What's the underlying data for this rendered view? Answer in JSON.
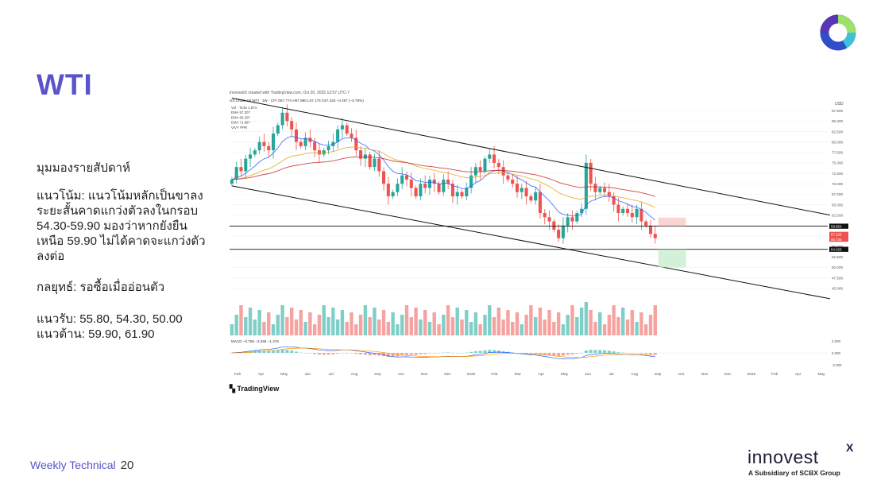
{
  "slide": {
    "title": "WTI",
    "page_label": "Weekly Technical",
    "page_number": "20",
    "brand_name": "innovest",
    "brand_x": "X",
    "brand_sub": "A Subsidiary of SCBX Group"
  },
  "content": {
    "view_heading": "มุมมองรายสัปดาห์",
    "trend_lines": [
      "แนวโน้ม: แนวโน้มหลักเป็นขาลง",
      "ระยะสั้นคาดแกว่งตัวลงในกรอบ",
      "54.30-59.90 มองว่าหากยังยืน",
      "เหนือ 59.90 ไม่ได้คาดจะแกว่งตัว",
      "ลงต่อ"
    ],
    "strategy": "กลยุทธ์: รอซื้อเมื่ออ่อนตัว",
    "support": "แนวรับ: 55.80, 54.30, 50.00",
    "resistance": "แนวต้าน: 59.90, 61.90"
  },
  "chart_data": {
    "type": "candlestick",
    "header": "innovestX created with TradingView.com, Oct 20, 2025 12:57 UTC-7",
    "symbol_line": "US Crude Oil WTI · 1W · CFI  O57.774 H57.980 L57.175 C57.225 −0.457 (−0.79%)",
    "indicator_labels": [
      "Vol · Ticks 1.874",
      "EMA 57.307",
      "EMA 60.207",
      "EMA 71.897",
      "VIVY PPR"
    ],
    "macd_label": "MACD −0.759 −2.266 −1.476",
    "currency": "USD",
    "x_labels": [
      "Feb",
      "Apr",
      "May",
      "Jun",
      "Jul",
      "Aug",
      "Sep",
      "Oct",
      "Nov",
      "Dec",
      "2025",
      "Feb",
      "Mar",
      "Apr",
      "May",
      "Jun",
      "Jul",
      "Aug",
      "Sep",
      "Oct",
      "Nov",
      "Dec",
      "2026",
      "Feb",
      "Apr",
      "May"
    ],
    "y_ticks": [
      "87.500",
      "85.000",
      "82.500",
      "80.000",
      "77.500",
      "75.000",
      "72.500",
      "70.000",
      "67.500",
      "65.000",
      "62.500",
      "60.000",
      "57.500",
      "55.000",
      "52.500",
      "50.000",
      "47.500",
      "45.000"
    ],
    "price_tags": [
      "59.853",
      "57.225",
      "56.735",
      "54.325"
    ],
    "macd_ticks": [
      "2.000",
      "0.000",
      "-2.000"
    ],
    "ylim": [
      44,
      90
    ],
    "closes": [
      71,
      74,
      73,
      76,
      77,
      78,
      80,
      79,
      78,
      82,
      84,
      87,
      85,
      83,
      80,
      79,
      81,
      80,
      78,
      77,
      78,
      79,
      80,
      83,
      84,
      82,
      81,
      78,
      76,
      77,
      74,
      76,
      73,
      70,
      67,
      68,
      70,
      72,
      71,
      69,
      67,
      70,
      69,
      71,
      70,
      68,
      71,
      70,
      67,
      68,
      67,
      69,
      72,
      74,
      73,
      76,
      77,
      75,
      74,
      72,
      71,
      70,
      68,
      69,
      67,
      66,
      68,
      63,
      62,
      61,
      59,
      57,
      60,
      62,
      61,
      63,
      64,
      75,
      70,
      68,
      69,
      68,
      67,
      65,
      63,
      64,
      63,
      62,
      64,
      61,
      60,
      58,
      57
    ],
    "bands": {
      "channel_upper": [
        [
          0,
          90.5
        ],
        [
          130,
          62.5
        ]
      ],
      "channel_lower": [
        [
          0,
          69.5
        ],
        [
          130,
          42.5
        ]
      ]
    },
    "levels": [
      59.853,
      54.325
    ],
    "colors": {
      "up": "#26a69a",
      "down": "#ef5350",
      "ema_fast": "#2962ff",
      "ema_mid": "#e3a71b",
      "ema_slow": "#c62828",
      "vol_up": "#7fcfc8",
      "vol_down": "#f5a3a0"
    }
  }
}
